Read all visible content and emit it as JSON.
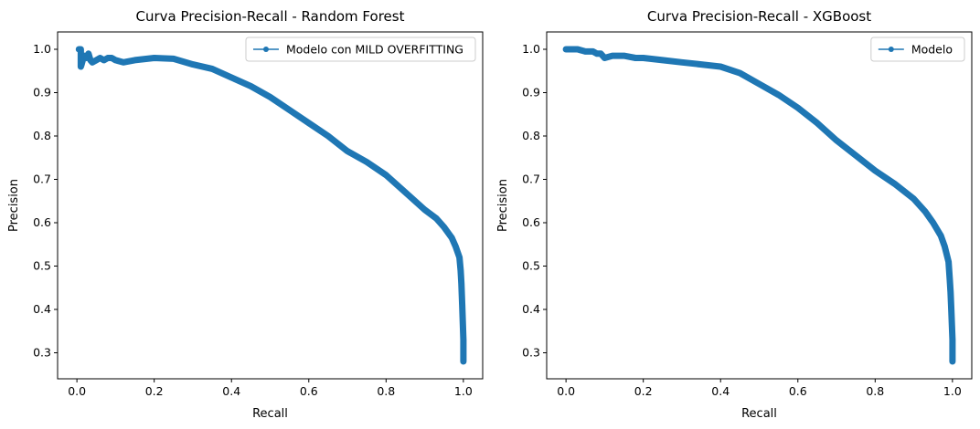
{
  "chart_data": [
    {
      "type": "line",
      "title": "Curva Precision-Recall - Random Forest",
      "xlabel": "Recall",
      "ylabel": "Precision",
      "xlim": [
        -0.05,
        1.05
      ],
      "ylim": [
        0.24,
        1.04
      ],
      "xticks": [
        "0.0",
        "0.2",
        "0.4",
        "0.6",
        "0.8",
        "1.0"
      ],
      "yticks": [
        "0.3",
        "0.4",
        "0.5",
        "0.6",
        "0.7",
        "0.8",
        "0.9",
        "1.0"
      ],
      "grid": false,
      "legend": "top-right",
      "color": "#1f77b4",
      "series": [
        {
          "name": "Modelo con MILD OVERFITTING",
          "x": [
            0.005,
            0.01,
            0.01,
            0.012,
            0.015,
            0.02,
            0.025,
            0.03,
            0.035,
            0.04,
            0.05,
            0.06,
            0.07,
            0.08,
            0.09,
            0.1,
            0.12,
            0.15,
            0.2,
            0.25,
            0.3,
            0.35,
            0.4,
            0.45,
            0.5,
            0.55,
            0.6,
            0.65,
            0.7,
            0.75,
            0.8,
            0.85,
            0.9,
            0.93,
            0.95,
            0.97,
            0.98,
            0.99,
            0.993,
            0.995,
            0.997,
            1.0,
            1.0
          ],
          "y": [
            1.0,
            1.0,
            0.96,
            0.965,
            0.975,
            0.985,
            0.98,
            0.99,
            0.975,
            0.97,
            0.975,
            0.98,
            0.975,
            0.98,
            0.98,
            0.975,
            0.97,
            0.975,
            0.98,
            0.978,
            0.965,
            0.955,
            0.935,
            0.915,
            0.89,
            0.86,
            0.83,
            0.8,
            0.765,
            0.74,
            0.71,
            0.67,
            0.63,
            0.61,
            0.59,
            0.565,
            0.545,
            0.52,
            0.49,
            0.46,
            0.41,
            0.33,
            0.28
          ]
        }
      ]
    },
    {
      "type": "line",
      "title": "Curva Precision-Recall - XGBoost",
      "xlabel": "Recall",
      "ylabel": "Precision",
      "xlim": [
        -0.05,
        1.05
      ],
      "ylim": [
        0.24,
        1.04
      ],
      "xticks": [
        "0.0",
        "0.2",
        "0.4",
        "0.6",
        "0.8",
        "1.0"
      ],
      "yticks": [
        "0.3",
        "0.4",
        "0.5",
        "0.6",
        "0.7",
        "0.8",
        "0.9",
        "1.0"
      ],
      "grid": false,
      "legend": "top-right",
      "color": "#1f77b4",
      "series": [
        {
          "name": "Modelo",
          "x": [
            0.0,
            0.03,
            0.05,
            0.07,
            0.08,
            0.09,
            0.1,
            0.12,
            0.15,
            0.18,
            0.2,
            0.25,
            0.3,
            0.35,
            0.4,
            0.45,
            0.5,
            0.55,
            0.6,
            0.65,
            0.7,
            0.75,
            0.8,
            0.85,
            0.9,
            0.93,
            0.95,
            0.97,
            0.98,
            0.99,
            0.993,
            0.995,
            0.997,
            1.0,
            1.0
          ],
          "y": [
            1.0,
            1.0,
            0.995,
            0.995,
            0.99,
            0.99,
            0.98,
            0.985,
            0.985,
            0.98,
            0.98,
            0.975,
            0.97,
            0.965,
            0.96,
            0.945,
            0.92,
            0.895,
            0.865,
            0.83,
            0.79,
            0.755,
            0.72,
            0.69,
            0.655,
            0.625,
            0.6,
            0.57,
            0.545,
            0.51,
            0.47,
            0.44,
            0.4,
            0.33,
            0.28
          ]
        }
      ]
    }
  ]
}
